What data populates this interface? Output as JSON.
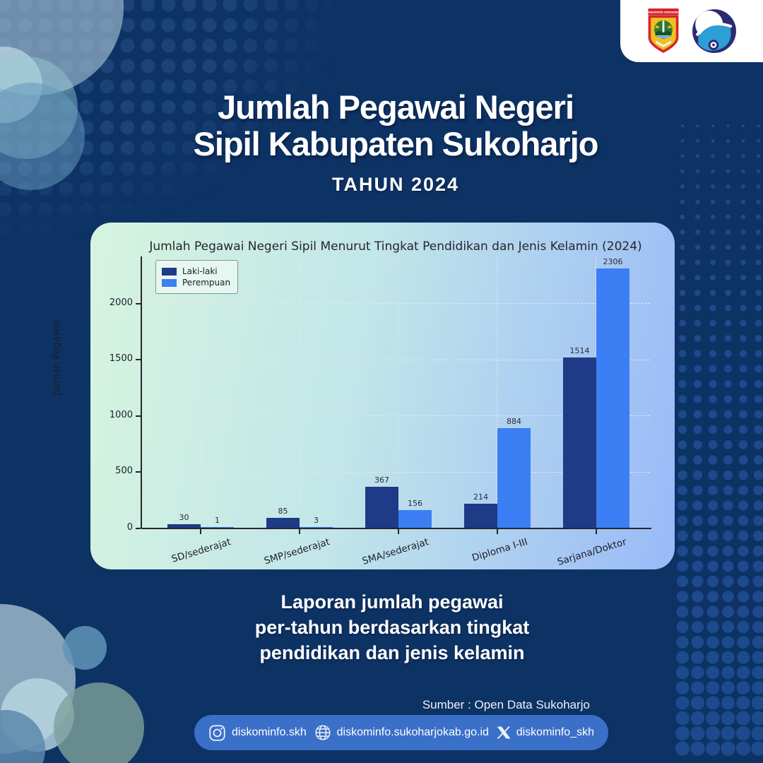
{
  "header": {
    "title_line1": "Jumlah Pegawai Negeri",
    "title_line2": "Sipil Kabupaten Sukoharjo",
    "subtitle": "TAHUN 2024"
  },
  "logos": {
    "crest_label": "KABUPATEN SUKOHARJO"
  },
  "chart_data": {
    "type": "bar",
    "title": "Jumlah Pegawai Negeri Sipil Menurut Tingkat Pendidikan dan Jenis Kelamin (2024)",
    "ylabel": "Jumlah Pegawai",
    "categories": [
      "SD/sederajat",
      "SMP/sederajat",
      "SMA/sederajat",
      "Diploma I-III",
      "Sarjana/Doktor"
    ],
    "series": [
      {
        "name": "Laki-laki",
        "color": "#1f3a86",
        "values": [
          30,
          85,
          367,
          214,
          1514
        ]
      },
      {
        "name": "Perempuan",
        "color": "#3c7ef3",
        "values": [
          1,
          3,
          156,
          884,
          2306
        ]
      }
    ],
    "yticks": [
      0,
      500,
      1000,
      1500,
      2000
    ],
    "ylim": [
      0,
      2420
    ],
    "grid": "dashed",
    "legend_position": "upper-left"
  },
  "caption": {
    "line1": "Laporan jumlah pegawai",
    "line2": "per-tahun berdasarkan tingkat",
    "line3": "pendidikan dan jenis kelamin"
  },
  "source": "Sumber : Open Data Sukoharjo",
  "footer": {
    "instagram": "diskominfo.skh",
    "website": "diskominfo.sukoharjokab.go.id",
    "x": "diskominfo_skh"
  },
  "colors": {
    "background": "#0d3264",
    "pill": "#3a70c8",
    "male_bar": "#1f3a86",
    "female_bar": "#3c7ef3"
  }
}
